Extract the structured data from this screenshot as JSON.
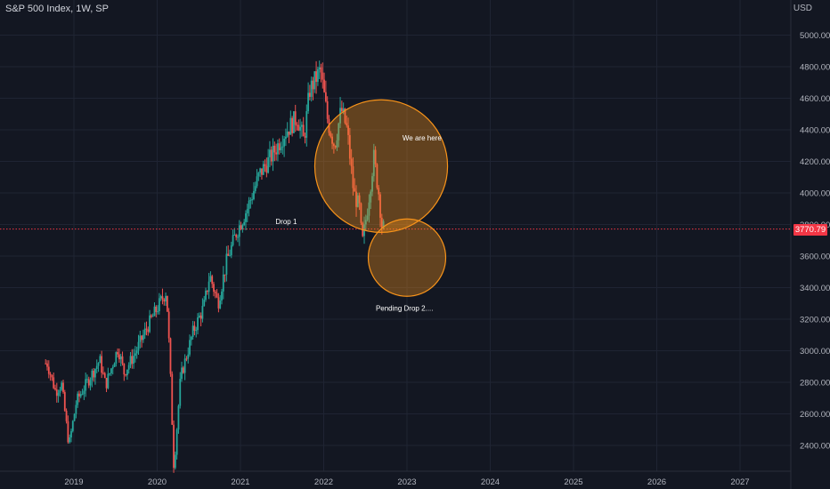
{
  "header": {
    "title": "S&P 500 Index, 1W, SP",
    "currency": "USD"
  },
  "chart_data": {
    "type": "candlestick",
    "title": "S&P 500 Index, 1W, SP",
    "ylim": [
      2200,
      5200
    ],
    "y_ticks": [
      "2400.00",
      "2600.00",
      "2800.00",
      "3000.00",
      "3200.00",
      "3400.00",
      "3600.00",
      "3800.00",
      "4000.00",
      "4200.00",
      "4400.00",
      "4600.00",
      "4800.00",
      "5000.00"
    ],
    "x_ticks": [
      "2019",
      "2020",
      "2021",
      "2022",
      "2023",
      "2024",
      "2025",
      "2026",
      "2027"
    ],
    "last_price": "3770.79",
    "series_points": [
      {
        "t": 2018.7,
        "v": 2920
      },
      {
        "t": 2018.8,
        "v": 2740
      },
      {
        "t": 2018.87,
        "v": 2790
      },
      {
        "t": 2018.96,
        "v": 2400
      },
      {
        "t": 2019.05,
        "v": 2680
      },
      {
        "t": 2019.2,
        "v": 2820
      },
      {
        "t": 2019.33,
        "v": 2940
      },
      {
        "t": 2019.4,
        "v": 2780
      },
      {
        "t": 2019.55,
        "v": 3020
      },
      {
        "t": 2019.62,
        "v": 2860
      },
      {
        "t": 2019.75,
        "v": 2980
      },
      {
        "t": 2019.9,
        "v": 3150
      },
      {
        "t": 2020.05,
        "v": 3300
      },
      {
        "t": 2020.13,
        "v": 3380
      },
      {
        "t": 2020.17,
        "v": 2950
      },
      {
        "t": 2020.22,
        "v": 2250
      },
      {
        "t": 2020.3,
        "v": 2830
      },
      {
        "t": 2020.45,
        "v": 3120
      },
      {
        "t": 2020.58,
        "v": 3280
      },
      {
        "t": 2020.65,
        "v": 3480
      },
      {
        "t": 2020.75,
        "v": 3300
      },
      {
        "t": 2020.85,
        "v": 3560
      },
      {
        "t": 2020.97,
        "v": 3750
      },
      {
        "t": 2021.1,
        "v": 3900
      },
      {
        "t": 2021.25,
        "v": 4120
      },
      {
        "t": 2021.4,
        "v": 4240
      },
      {
        "t": 2021.55,
        "v": 4380
      },
      {
        "t": 2021.7,
        "v": 4480
      },
      {
        "t": 2021.78,
        "v": 4330
      },
      {
        "t": 2021.85,
        "v": 4650
      },
      {
        "t": 2021.98,
        "v": 4780
      },
      {
        "t": 2022.07,
        "v": 4450
      },
      {
        "t": 2022.15,
        "v": 4300
      },
      {
        "t": 2022.23,
        "v": 4530
      },
      {
        "t": 2022.3,
        "v": 4400
      },
      {
        "t": 2022.38,
        "v": 4000
      },
      {
        "t": 2022.45,
        "v": 3900
      },
      {
        "t": 2022.48,
        "v": 3670
      },
      {
        "t": 2022.55,
        "v": 3920
      },
      {
        "t": 2022.62,
        "v": 4230
      },
      {
        "t": 2022.68,
        "v": 4000
      },
      {
        "t": 2022.72,
        "v": 3780
      }
    ],
    "annotations": [
      {
        "label": "We are here",
        "t": 2023.18,
        "v": 4350,
        "shape": "circle",
        "radius_value": 420,
        "center_t": 2022.69,
        "center_v": 4170
      },
      {
        "label": "Drop 1",
        "t": 2021.55,
        "v": 3820
      },
      {
        "label": "Pending Drop 2....",
        "t": 2022.97,
        "v": 3270,
        "shape": "circle",
        "radius_value": 245,
        "center_t": 2023.0,
        "center_v": 3590
      }
    ],
    "grid": true,
    "up_color": "#26a69a",
    "down_color": "#ef5350",
    "circle_color": "#f7931a"
  }
}
